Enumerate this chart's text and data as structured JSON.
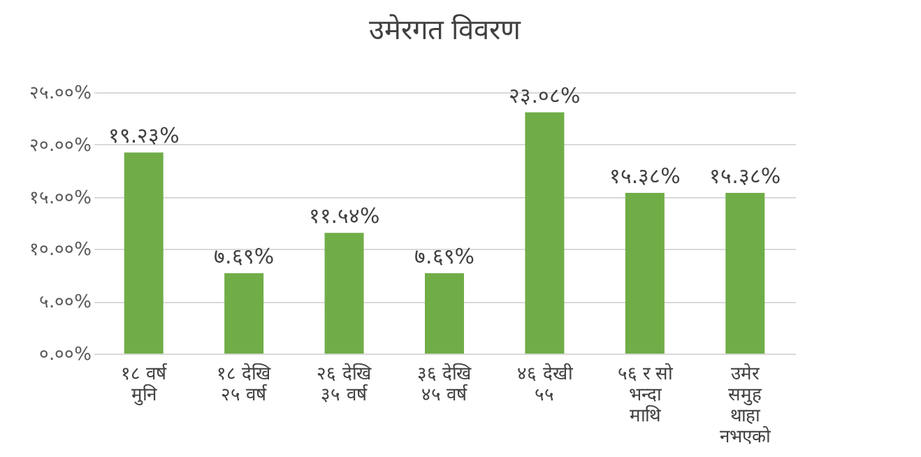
{
  "chart_data": {
    "type": "bar",
    "title": "उमेरगत विवरण",
    "categories": [
      "१८ वर्ष\nमुनि",
      "१८ देखि\n२५ वर्ष",
      "२६ देखि\n३५ वर्ष",
      "३६ देखि\n४५ वर्ष",
      "४६ देखी\n५५",
      "५६ र सो\nभन्दा\nमाथि",
      "उमेर\nसमुह\nथाहा\nनभएको"
    ],
    "values": [
      19.23,
      7.69,
      11.54,
      7.69,
      23.08,
      15.38,
      15.38
    ],
    "value_labels": [
      "१९.२३%",
      "७.६९%",
      "११.५४%",
      "७.६९%",
      "२३.०८%",
      "१५.३८%",
      "१५.३८%"
    ],
    "color": "#70ad47",
    "ylim": [
      0,
      25
    ],
    "yticks": [
      {
        "value": 0,
        "label": "०.००%"
      },
      {
        "value": 5,
        "label": "५.००%"
      },
      {
        "value": 10,
        "label": "१०.००%"
      },
      {
        "value": 15,
        "label": "१५.००%"
      },
      {
        "value": 20,
        "label": "२०.००%"
      },
      {
        "value": 25,
        "label": "२५.००%"
      }
    ],
    "grid": "y"
  }
}
